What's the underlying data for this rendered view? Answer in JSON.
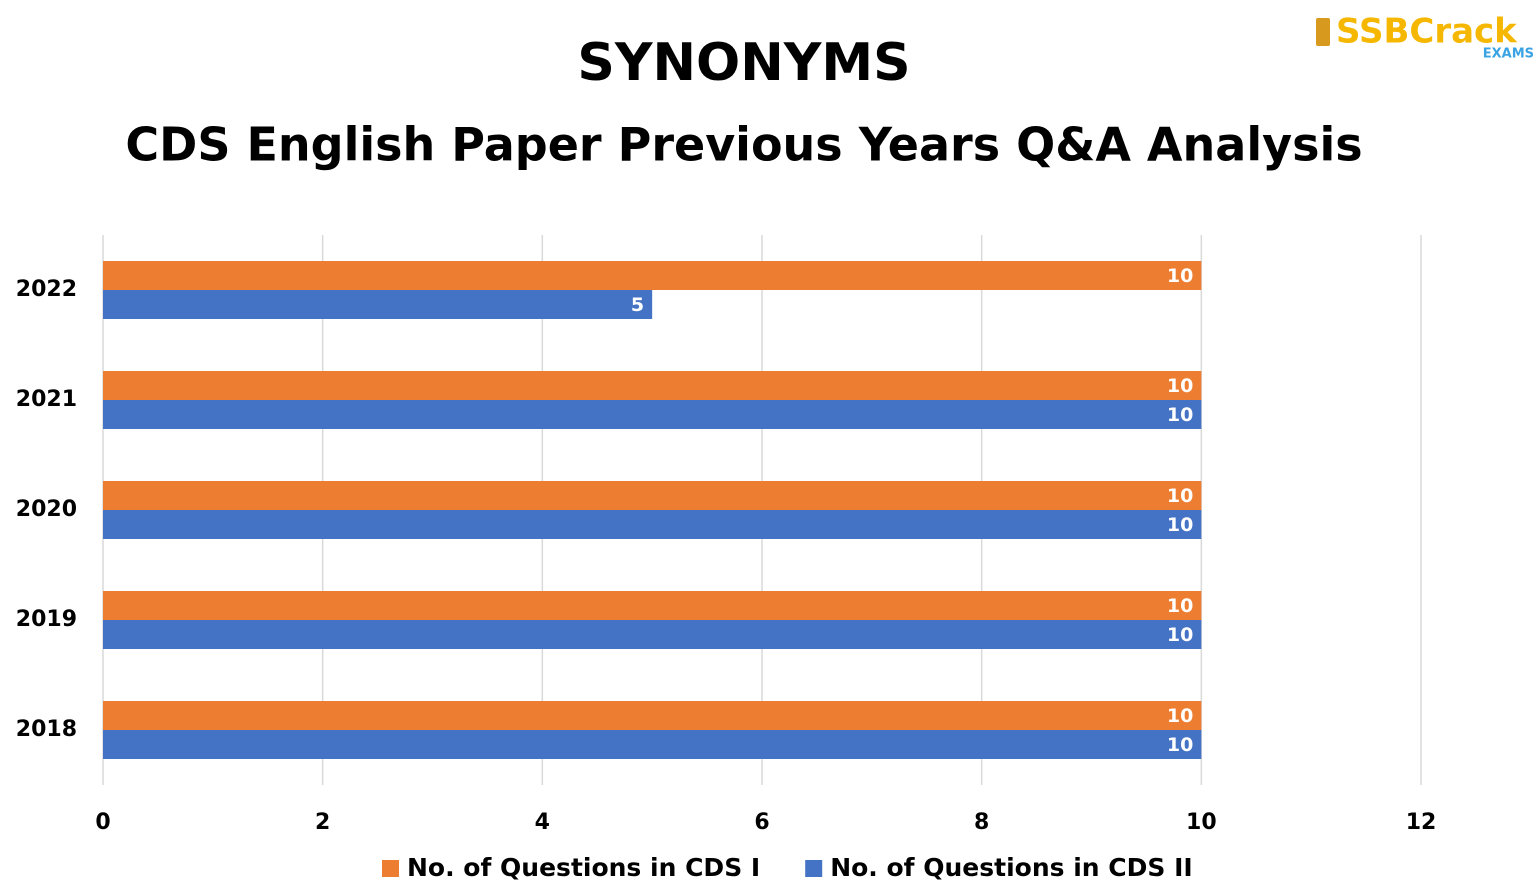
{
  "chart_data": {
    "type": "bar",
    "orientation": "horizontal",
    "title": "SYNONYMS",
    "subtitle": "CDS English Paper Previous Years Q&A Analysis",
    "categories": [
      "2022",
      "2021",
      "2020",
      "2019",
      "2018"
    ],
    "series": [
      {
        "name": "No. of Questions in CDS I",
        "color": "#ed7d31",
        "values": [
          10,
          10,
          10,
          10,
          10
        ]
      },
      {
        "name": "No. of Questions in CDS II",
        "color": "#4472c4",
        "values": [
          5,
          10,
          10,
          10,
          10
        ]
      }
    ],
    "xlim": [
      0,
      12
    ],
    "xticks": [
      0,
      2,
      4,
      6,
      8,
      10,
      12
    ],
    "grid": true,
    "legend": "bottom"
  },
  "logo": {
    "name": "SSBCrack",
    "tag": "EXAMS"
  }
}
